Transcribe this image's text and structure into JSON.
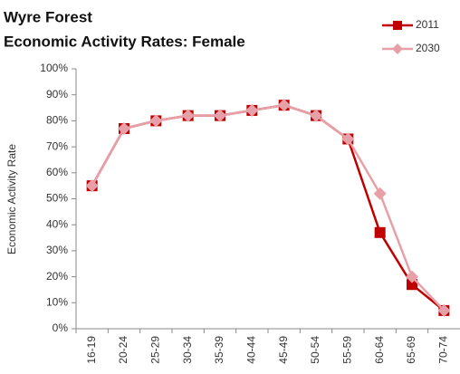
{
  "chart_data": {
    "type": "line",
    "title": "Wyre Forest",
    "subtitle": "Economic Activity Rates: Female",
    "y_label": "Economic Activity Rate",
    "categories": [
      "16-19",
      "20-24",
      "25-29",
      "30-34",
      "35-39",
      "40-44",
      "45-49",
      "50-54",
      "55-59",
      "60-64",
      "65-69",
      "70-74"
    ],
    "series": [
      {
        "name": "2011",
        "color": "#c00000",
        "marker": "square",
        "values": [
          55,
          77,
          80,
          82,
          82,
          84,
          86,
          82,
          73,
          37,
          17,
          7
        ]
      },
      {
        "name": "2030",
        "color": "#e8a0a8",
        "marker": "diamond",
        "values": [
          55,
          77,
          80,
          82,
          82,
          84,
          86,
          82,
          73,
          52,
          20,
          7
        ]
      }
    ],
    "ylim": [
      0,
      100
    ],
    "yticks": [
      {
        "value": 0,
        "label": "0%"
      },
      {
        "value": 10,
        "label": "10%"
      },
      {
        "value": 20,
        "label": "20%"
      },
      {
        "value": 30,
        "label": "30%"
      },
      {
        "value": 40,
        "label": "40%"
      },
      {
        "value": 50,
        "label": "50%"
      },
      {
        "value": 60,
        "label": "60%"
      },
      {
        "value": 70,
        "label": "70%"
      },
      {
        "value": 80,
        "label": "80%"
      },
      {
        "value": 90,
        "label": "90%"
      },
      {
        "value": 100,
        "label": "100%"
      }
    ],
    "grid": false,
    "legend": "top-right"
  }
}
